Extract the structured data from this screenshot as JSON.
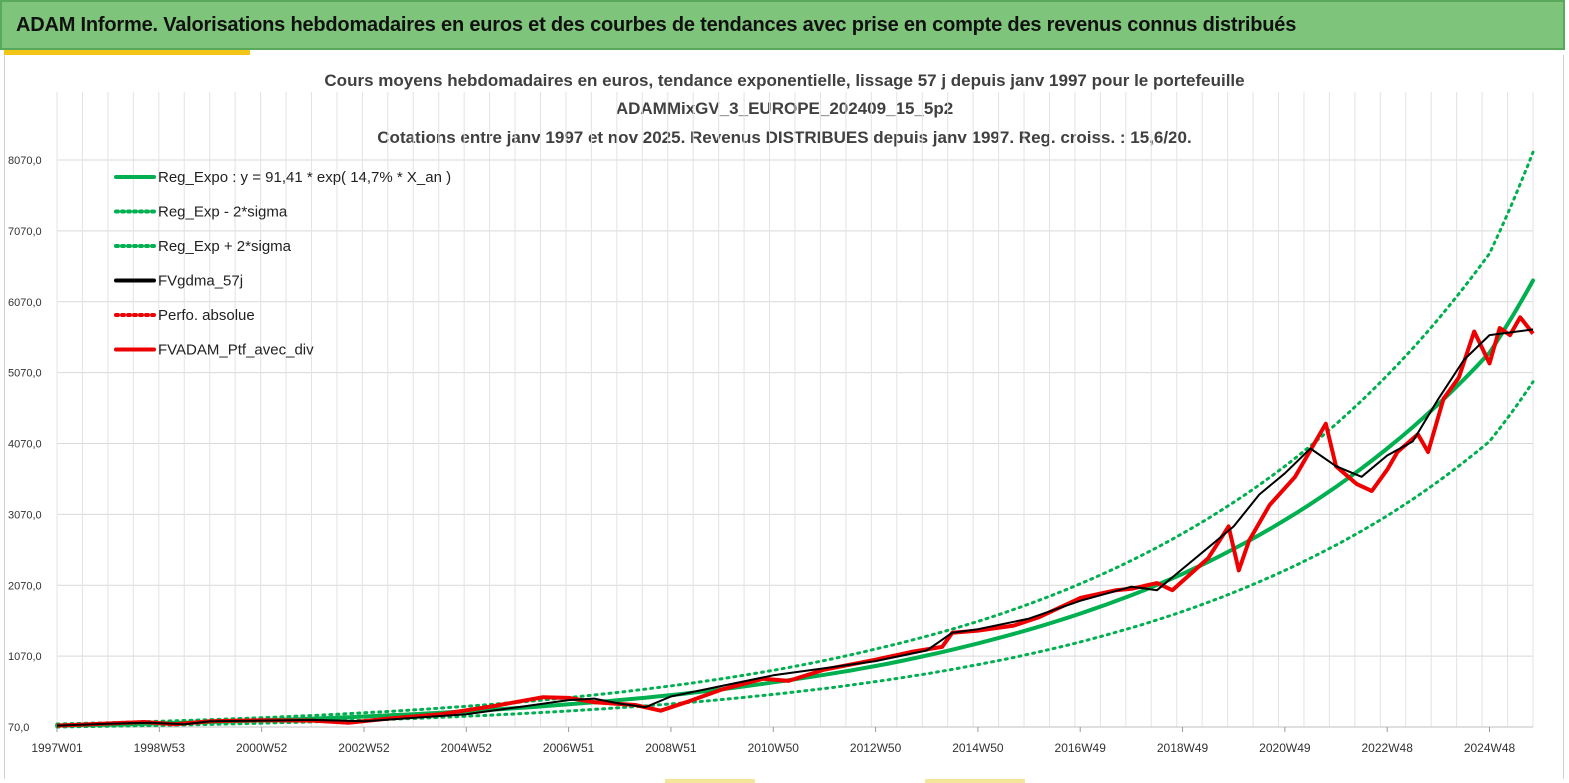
{
  "banner": {
    "title": "ADAM Informe. Valorisations hebdomadaires en euros et des courbes de tendances avec prise en compte des revenus connus distribués"
  },
  "colors": {
    "banner": "#7ec47a",
    "accent": "#f3c517",
    "green": "#00b050",
    "red": "#ee0000",
    "black": "#000000"
  },
  "chart_data": {
    "type": "line",
    "title_lines": [
      "Cours moyens hebdomadaires  en euros, tendance exponentielle, lissage 57 j depuis janv 1997 pour le portefeuille",
      "ADAMMixGV_3_EUROPE_202409_15_5p2",
      "Cotations  entre janv 1997 et nov 2025. Revenus DISTRIBUES depuis janv 1997. Reg. croiss. : 15,6/20."
    ],
    "y_ticks": [
      "70,0",
      "1070,0",
      "2070,0",
      "3070,0",
      "4070,0",
      "5070,0",
      "6070,0",
      "7070,0",
      "8070,0"
    ],
    "ylim": [
      70,
      8070
    ],
    "x_ticks": [
      "1997W01",
      "1998W53",
      "2000W52",
      "2002W52",
      "2004W52",
      "2006W51",
      "2008W51",
      "2010W50",
      "2012W50",
      "2014W50",
      "2016W49",
      "2018W49",
      "2020W49",
      "2022W48",
      "2024W48"
    ],
    "xlim_years": [
      1997.0,
      2025.85
    ],
    "grid": "vertical and horizontal",
    "legend_position": "top-left",
    "legend": [
      {
        "label": "Reg_Expo : y = 91,41 * exp( 14,7% *  X_an )",
        "color": "#00b050",
        "style": "solid"
      },
      {
        "label": "Reg_Exp - 2*sigma",
        "color": "#00b050",
        "style": "dotted"
      },
      {
        "label": "Reg_Exp + 2*sigma",
        "color": "#00b050",
        "style": "dotted"
      },
      {
        "label": "FVgdma_57j",
        "color": "#000000",
        "style": "solid"
      },
      {
        "label": "Perfo. absolue",
        "color": "#ee0000",
        "style": "dotted"
      },
      {
        "label": "FVADAM_Ptf_avec_div",
        "color": "#ee0000",
        "style": "solid"
      }
    ],
    "series": [
      {
        "name": "Reg_Expo : y = 91,41 * exp( 14,7% *  X_an )",
        "x": [
          1997,
          1999,
          2001,
          2003,
          2005,
          2007,
          2009,
          2011,
          2013,
          2015,
          2017,
          2019,
          2021,
          2023,
          2025,
          2025.85
        ],
        "values": [
          91,
          121,
          163,
          218,
          292,
          390,
          520,
          700,
          930,
          1250,
          1670,
          2230,
          2990,
          4000,
          5350,
          6370
        ]
      },
      {
        "name": "Reg_Exp - 2*sigma",
        "x": [
          1997,
          1999,
          2001,
          2003,
          2005,
          2007,
          2009,
          2011,
          2013,
          2015,
          2017,
          2019,
          2021,
          2023,
          2025,
          2025.85
        ],
        "values": [
          70,
          93,
          124,
          166,
          222,
          296,
          396,
          530,
          710,
          950,
          1270,
          1700,
          2280,
          3050,
          4100,
          4940
        ]
      },
      {
        "name": "Reg_Exp + 2*sigma",
        "x": [
          1997,
          1999,
          2001,
          2003,
          2005,
          2007,
          2009,
          2011,
          2013,
          2015,
          2017,
          2019,
          2021,
          2023,
          2025,
          2025.85
        ],
        "values": [
          112,
          150,
          201,
          270,
          362,
          485,
          650,
          870,
          1170,
          1560,
          2090,
          2800,
          3750,
          5030,
          6750,
          8180
        ]
      },
      {
        "name": "FVgdma_57j",
        "x": [
          1997,
          1998,
          1998.8,
          1999.5,
          2000,
          2001,
          2002,
          2003,
          2004,
          2005,
          2006,
          2007,
          2007.5,
          2008,
          2008.5,
          2009,
          2010,
          2011,
          2012,
          2013,
          2014,
          2014.5,
          2015,
          2016,
          2017,
          2018,
          2018.5,
          2019,
          2019.5,
          2020,
          2020.5,
          2021,
          2021.5,
          2022,
          2022.5,
          2023,
          2023.5,
          2024,
          2024.5,
          2025,
          2025.85
        ],
        "values": [
          90,
          115,
          130,
          110,
          150,
          160,
          170,
          150,
          200,
          250,
          350,
          450,
          470,
          400,
          350,
          500,
          650,
          800,
          900,
          1000,
          1150,
          1400,
          1450,
          1600,
          1850,
          2050,
          2000,
          2300,
          2600,
          2900,
          3350,
          3650,
          4000,
          3750,
          3600,
          3900,
          4100,
          4700,
          5250,
          5600,
          5680
        ]
      },
      {
        "name": "FVADAM_Ptf_avec_div",
        "x": [
          1997,
          1998,
          1998.7,
          1999.3,
          2000,
          2001,
          2002,
          2002.7,
          2003.5,
          2004.5,
          2005.5,
          2006.5,
          2007,
          2007.5,
          2008.3,
          2008.8,
          2009.3,
          2010,
          2010.8,
          2011.3,
          2012,
          2013,
          2013.7,
          2014.3,
          2014.5,
          2015,
          2015.7,
          2016.2,
          2017,
          2017.7,
          2018,
          2018.5,
          2018.8,
          2019.5,
          2019.9,
          2020.1,
          2020.3,
          2020.7,
          2021.2,
          2021.6,
          2021.8,
          2022.0,
          2022.4,
          2022.7,
          2023.0,
          2023.2,
          2023.6,
          2023.8,
          2024.1,
          2024.4,
          2024.7,
          2025.0,
          2025.2,
          2025.4,
          2025.6,
          2025.85
        ],
        "values": [
          90,
          120,
          140,
          110,
          150,
          165,
          160,
          130,
          190,
          250,
          360,
          490,
          480,
          420,
          380,
          300,
          420,
          600,
          750,
          720,
          880,
          1020,
          1130,
          1200,
          1400,
          1430,
          1500,
          1620,
          1890,
          2000,
          2020,
          2100,
          2000,
          2450,
          2900,
          2280,
          2700,
          3200,
          3600,
          4100,
          4350,
          3750,
          3500,
          3400,
          3700,
          3950,
          4200,
          3950,
          4700,
          5000,
          5650,
          5200,
          5700,
          5600,
          5850,
          5620
        ]
      }
    ]
  }
}
